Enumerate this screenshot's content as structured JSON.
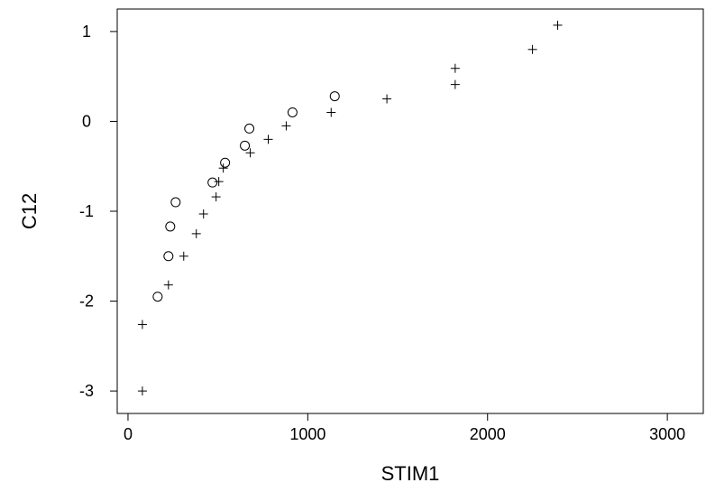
{
  "chart_data": {
    "type": "scatter",
    "title": "",
    "xlabel": "STIM1",
    "ylabel": "C12",
    "xlim": [
      -60,
      3200
    ],
    "ylim": [
      -3.25,
      1.25
    ],
    "xticks": [
      0,
      1000,
      2000,
      3000
    ],
    "yticks": [
      -3,
      -2,
      -1,
      0,
      1
    ],
    "xtick_labels": [
      "0",
      "1000",
      "2000",
      "3000"
    ],
    "ytick_labels": [
      "-3",
      "-2",
      "-1",
      "0",
      "1"
    ],
    "grid": false,
    "legend": "none",
    "series": [
      {
        "marker": "plus",
        "points": [
          {
            "x": 80,
            "y": -3.0
          },
          {
            "x": 80,
            "y": -2.26
          },
          {
            "x": 225,
            "y": -1.82
          },
          {
            "x": 310,
            "y": -1.5
          },
          {
            "x": 380,
            "y": -1.25
          },
          {
            "x": 420,
            "y": -1.03
          },
          {
            "x": 490,
            "y": -0.84
          },
          {
            "x": 505,
            "y": -0.67
          },
          {
            "x": 530,
            "y": -0.52
          },
          {
            "x": 680,
            "y": -0.35
          },
          {
            "x": 780,
            "y": -0.2
          },
          {
            "x": 880,
            "y": -0.05
          },
          {
            "x": 1130,
            "y": 0.1
          },
          {
            "x": 1440,
            "y": 0.25
          },
          {
            "x": 1820,
            "y": 0.41
          },
          {
            "x": 1820,
            "y": 0.59
          },
          {
            "x": 2250,
            "y": 0.8
          },
          {
            "x": 2390,
            "y": 1.07
          }
        ]
      },
      {
        "marker": "circle",
        "points": [
          {
            "x": 165,
            "y": -1.95
          },
          {
            "x": 225,
            "y": -1.5
          },
          {
            "x": 235,
            "y": -1.17
          },
          {
            "x": 265,
            "y": -0.9
          },
          {
            "x": 470,
            "y": -0.68
          },
          {
            "x": 540,
            "y": -0.46
          },
          {
            "x": 650,
            "y": -0.27
          },
          {
            "x": 675,
            "y": -0.08
          },
          {
            "x": 915,
            "y": 0.1
          },
          {
            "x": 1150,
            "y": 0.28
          }
        ]
      }
    ]
  }
}
